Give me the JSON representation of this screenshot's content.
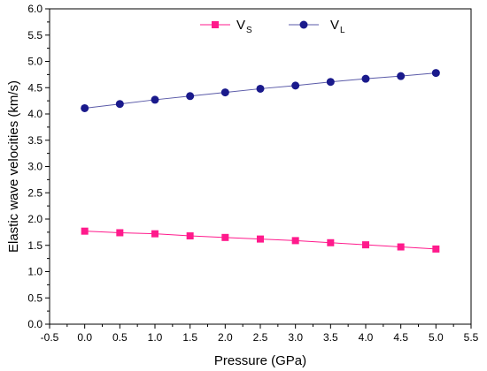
{
  "chart_data": {
    "type": "line",
    "title": "",
    "xlabel": "Pressure (GPa)",
    "ylabel": "Elastic wave velocities (km/s)",
    "xlim": [
      -0.5,
      5.5
    ],
    "ylim": [
      0.0,
      6.0
    ],
    "xticks": [
      "-0.5",
      "0.0",
      "0.5",
      "1.0",
      "1.5",
      "2.0",
      "2.5",
      "3.0",
      "3.5",
      "4.0",
      "4.5",
      "5.0",
      "5.5"
    ],
    "yticks": [
      "0.0",
      "0.5",
      "1.0",
      "1.5",
      "2.0",
      "2.5",
      "3.0",
      "3.5",
      "4.0",
      "4.5",
      "5.0",
      "5.5",
      "6.0"
    ],
    "grid": false,
    "legend_position": "top-center",
    "x": [
      0.0,
      0.5,
      1.0,
      1.5,
      2.0,
      2.5,
      3.0,
      3.5,
      4.0,
      4.5,
      5.0
    ],
    "series": [
      {
        "name": "V",
        "subscript": "S",
        "marker": "square",
        "color": "#ff1a8c",
        "values": [
          1.77,
          1.74,
          1.72,
          1.68,
          1.65,
          1.62,
          1.59,
          1.55,
          1.51,
          1.47,
          1.43
        ]
      },
      {
        "name": "V",
        "subscript": "L",
        "marker": "circle",
        "color": "#1a1a8c",
        "line_color": "#5a5aa8",
        "values": [
          4.11,
          4.19,
          4.27,
          4.34,
          4.41,
          4.48,
          4.54,
          4.61,
          4.67,
          4.72,
          4.78
        ]
      }
    ]
  }
}
